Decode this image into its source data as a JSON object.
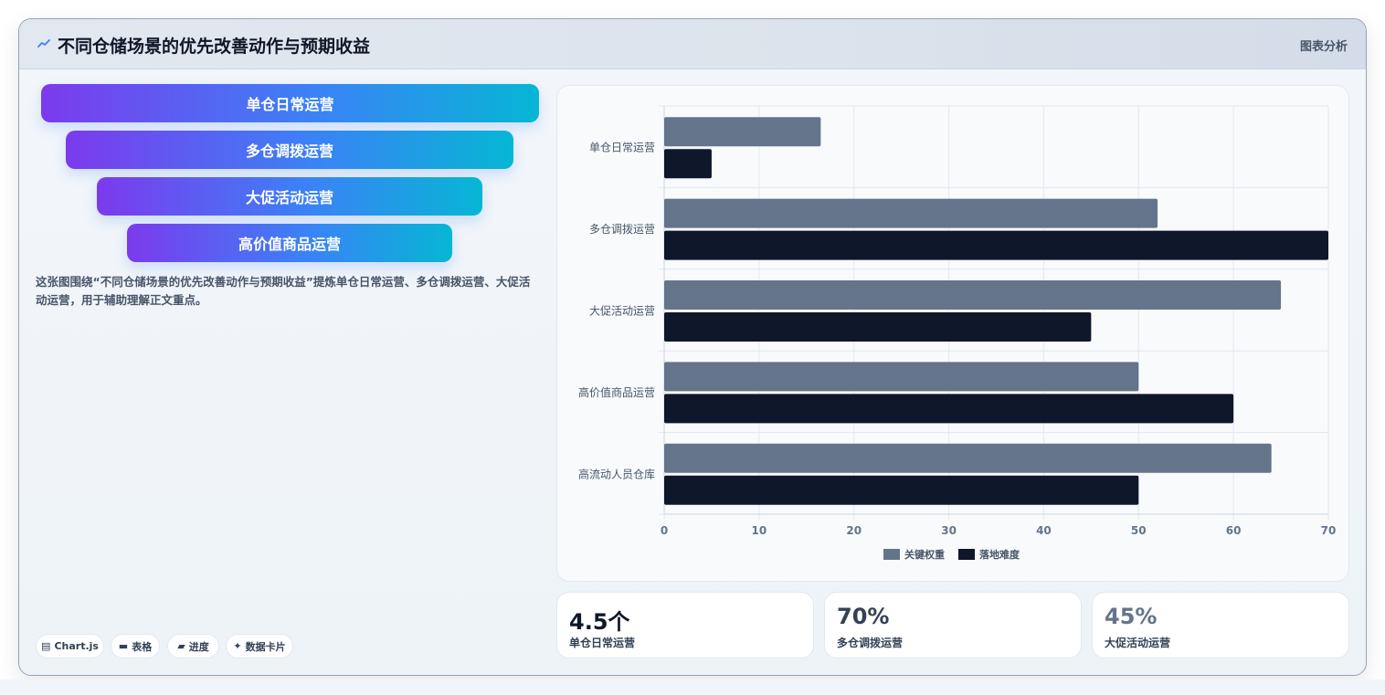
{
  "header": {
    "title": "不同仓储场景的优先改善动作与预期收益",
    "tag": "图表分析"
  },
  "funnel": [
    {
      "label": "单仓日常运营"
    },
    {
      "label": "多仓调拨运营"
    },
    {
      "label": "大促活动运营"
    },
    {
      "label": "高价值商品运营"
    }
  ],
  "description": "这张图围绕“不同仓储场景的优先改善动作与预期收益”提炼单仓日常运营、多仓调拨运营、大促活动运营，用于辅助理解正文重点。",
  "chips": [
    {
      "icon": "chart-icon",
      "label": "Chart.js"
    },
    {
      "icon": "table-icon",
      "label": "表格"
    },
    {
      "icon": "progress-icon",
      "label": "进度"
    },
    {
      "icon": "sparkle-icon",
      "label": "数据卡片"
    }
  ],
  "chart_data": {
    "type": "bar",
    "orientation": "horizontal",
    "categories": [
      "单仓日常运营",
      "多仓调拨运营",
      "大促活动运营",
      "高价值商品运营",
      "高流动人员仓库"
    ],
    "series": [
      {
        "name": "关键权重",
        "color": "#64748b",
        "values": [
          16.5,
          52,
          65,
          50,
          64
        ]
      },
      {
        "name": "落地难度",
        "color": "#0f172a",
        "values": [
          5,
          70,
          45,
          60,
          50
        ]
      }
    ],
    "xticks": [
      0,
      10,
      20,
      30,
      40,
      50,
      60,
      70
    ],
    "xlim": [
      0,
      70
    ],
    "grid": true,
    "legend_position": "bottom"
  },
  "stats": [
    {
      "value": "4.5个",
      "label": "单仓日常运营",
      "color": "#0f172a"
    },
    {
      "value": "70%",
      "label": "多仓调拨运营",
      "color": "#334155"
    },
    {
      "value": "45%",
      "label": "大促活动运营",
      "color": "#64748b"
    }
  ]
}
